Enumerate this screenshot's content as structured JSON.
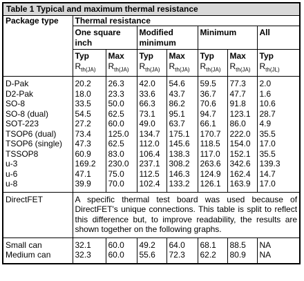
{
  "table": {
    "title": "Table 1 Typical and maximum thermal resistance",
    "header": {
      "package_type": "Package type",
      "thermal_resistance": "Thermal resistance",
      "groups": [
        "One square inch",
        "Modified minimum",
        "Minimum",
        "All"
      ],
      "columns": [
        {
          "label": "Typ",
          "symbol": "R",
          "sub": "th(JA)"
        },
        {
          "label": "Max",
          "symbol": "R",
          "sub": "th(JA)"
        },
        {
          "label": "Typ",
          "symbol": "R",
          "sub": "th(JA)"
        },
        {
          "label": "Max",
          "symbol": "R",
          "sub": "th(JA)"
        },
        {
          "label": "Typ",
          "symbol": "R",
          "sub": "th(JA)"
        },
        {
          "label": "Max",
          "symbol": "R",
          "sub": "th(JA)"
        },
        {
          "label": "Typ",
          "symbol": "R",
          "sub": "th(JL)"
        }
      ]
    },
    "rows": [
      {
        "package": "D-Pak",
        "values": [
          "20.2",
          "26.3",
          "42.0",
          "54.6",
          "59.5",
          "77.3",
          "2.0"
        ]
      },
      {
        "package": "D2-Pak",
        "values": [
          "18.0",
          "23.3",
          "33.6",
          "43.7",
          "36.7",
          "47.7",
          "1.6"
        ]
      },
      {
        "package": "SO-8",
        "values": [
          "33.5",
          "50.0",
          "66.3",
          "86.2",
          "70.6",
          "91.8",
          "10.6"
        ]
      },
      {
        "package": "SO-8 (dual)",
        "values": [
          "54.5",
          "62.5",
          "73.1",
          "95.1",
          "94.7",
          "123.1",
          "28.7"
        ]
      },
      {
        "package": "SOT-223",
        "values": [
          "27.2",
          "60.0",
          "49.0",
          "63.7",
          "66.1",
          "86.0",
          "4.9"
        ]
      },
      {
        "package": "TSOP6 (dual)",
        "values": [
          "73.4",
          "125.0",
          "134.7",
          "175.1",
          "170.7",
          "222.0",
          "35.5"
        ]
      },
      {
        "package": "TSOP6 (single)",
        "values": [
          "47.3",
          "62.5",
          "112.0",
          "145.6",
          "118.5",
          "154.0",
          "17.0"
        ]
      },
      {
        "package": "TSSOP8",
        "values": [
          "60.9",
          "83.0",
          "106.4",
          "138.3",
          "117.0",
          "152.1",
          "35.5"
        ]
      },
      {
        "package": "u-3",
        "values": [
          "169.2",
          "230.0",
          "237.1",
          "308.2",
          "263.6",
          "342.6",
          "139.3"
        ]
      },
      {
        "package": "u-6",
        "values": [
          "47.1",
          "75.0",
          "112.5",
          "146.3",
          "124.9",
          "162.4",
          "14.7"
        ]
      },
      {
        "package": "u-8",
        "values": [
          "39.9",
          "70.0",
          "102.4",
          "133.2",
          "126.1",
          "163.9",
          "17.0"
        ]
      }
    ],
    "note_row": {
      "package": "DirectFET",
      "note": "A specific thermal test board was used because of DirectFET's unique connections. This table is split to reflect this difference but, to improve readability, the results are shown together on the following graphs."
    },
    "can_rows": [
      {
        "package": "Small can",
        "values": [
          "32.1",
          "60.0",
          "49.2",
          "64.0",
          "68.1",
          "88.5",
          "NA"
        ]
      },
      {
        "package": "Medium can",
        "values": [
          "32.3",
          "60.0",
          "55.6",
          "72.3",
          "62.2",
          "80.9",
          "NA"
        ]
      }
    ]
  }
}
